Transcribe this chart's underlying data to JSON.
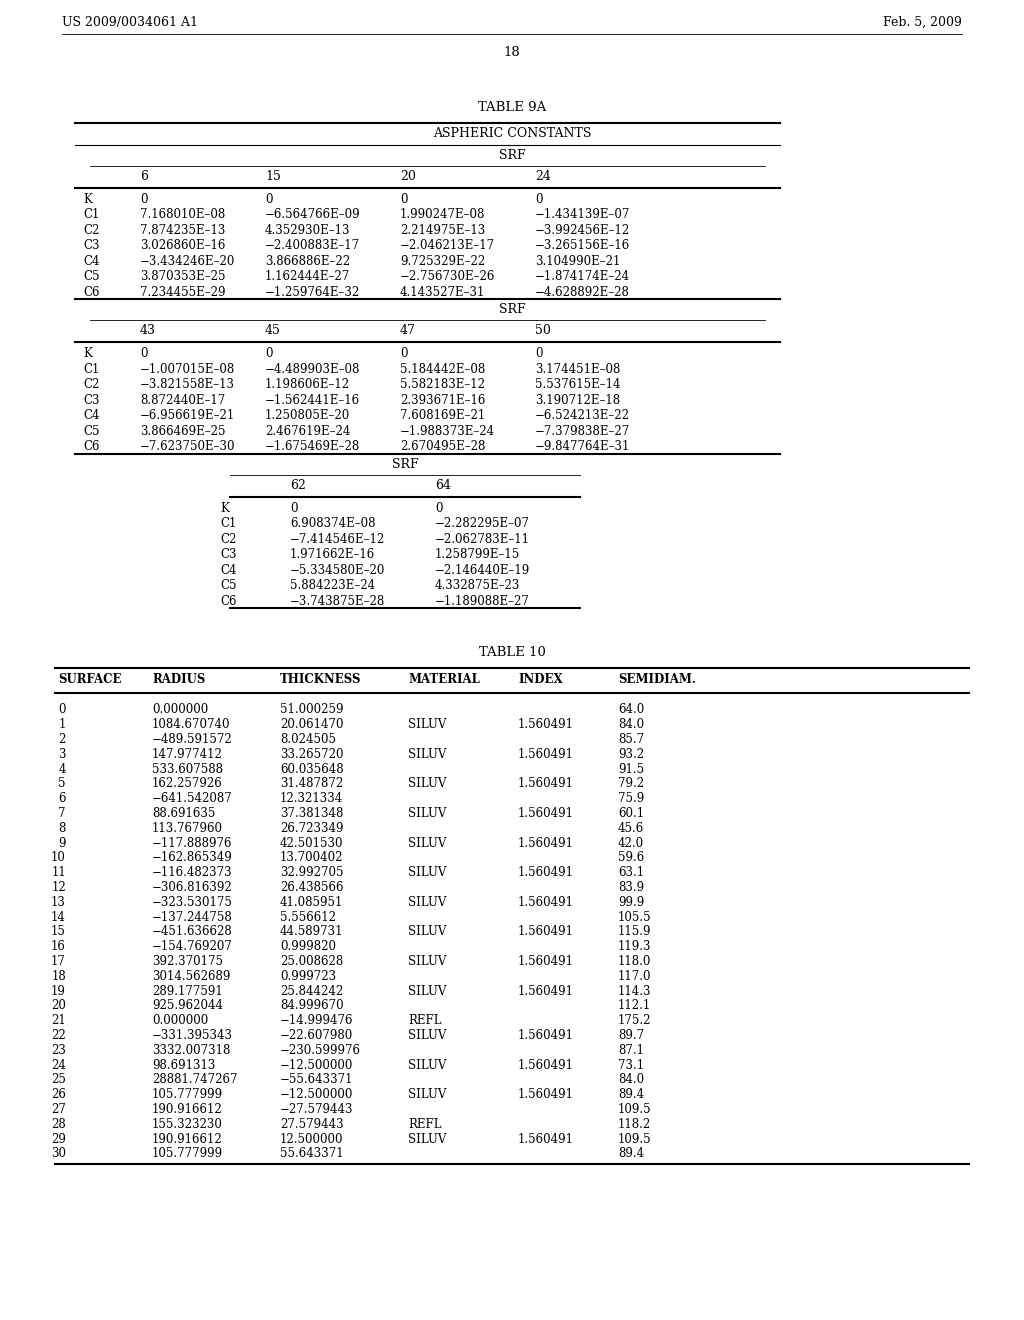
{
  "header_left": "US 2009/0034061 A1",
  "header_right": "Feb. 5, 2009",
  "page_number": "18",
  "table9a_title": "TABLE 9A",
  "table9a_subtitle": "ASPHERIC CONSTANTS",
  "table9a_block1_cols": [
    "6",
    "15",
    "20",
    "24"
  ],
  "table9a_block1_rows": [
    [
      "K",
      "0",
      "0",
      "0",
      "0"
    ],
    [
      "C1",
      "7.168010E–08",
      "−6.564766E–09",
      "1.990247E–08",
      "−1.434139E–07"
    ],
    [
      "C2",
      "7.874235E–13",
      "4.352930E–13",
      "2.214975E–13",
      "−3.992456E–12"
    ],
    [
      "C3",
      "3.026860E–16",
      "−2.400883E–17",
      "−2.046213E–17",
      "−3.265156E–16"
    ],
    [
      "C4",
      "−3.434246E–20",
      "3.866886E–22",
      "9.725329E–22",
      "3.104990E–21"
    ],
    [
      "C5",
      "3.870353E–25",
      "1.162444E–27",
      "−2.756730E–26",
      "−1.874174E–24"
    ],
    [
      "C6",
      "7.234455E–29",
      "−1.259764E–32",
      "4.143527E–31",
      "−4.628892E–28"
    ]
  ],
  "table9a_block2_cols": [
    "43",
    "45",
    "47",
    "50"
  ],
  "table9a_block2_rows": [
    [
      "K",
      "0",
      "0",
      "0",
      "0"
    ],
    [
      "C1",
      "−1.007015E–08",
      "−4.489903E–08",
      "5.184442E–08",
      "3.174451E–08"
    ],
    [
      "C2",
      "−3.821558E–13",
      "1.198606E–12",
      "5.582183E–12",
      "5.537615E–14"
    ],
    [
      "C3",
      "8.872440E–17",
      "−1.562441E–16",
      "2.393671E–16",
      "3.190712E–18"
    ],
    [
      "C4",
      "−6.956619E–21",
      "1.250805E–20",
      "7.608169E–21",
      "−6.524213E–22"
    ],
    [
      "C5",
      "3.866469E–25",
      "2.467619E–24",
      "−1.988373E–24",
      "−7.379838E–27"
    ],
    [
      "C6",
      "−7.623750E–30",
      "−1.675469E–28",
      "2.670495E–28",
      "−9.847764E–31"
    ]
  ],
  "table9a_block3_cols": [
    "62",
    "64"
  ],
  "table9a_block3_rows": [
    [
      "K",
      "0",
      "0"
    ],
    [
      "C1",
      "6.908374E–08",
      "−2.282295E–07"
    ],
    [
      "C2",
      "−7.414546E–12",
      "−2.062783E–11"
    ],
    [
      "C3",
      "1.971662E–16",
      "1.258799E–15"
    ],
    [
      "C4",
      "−5.334580E–20",
      "−2.146440E–19"
    ],
    [
      "C5",
      "5.884223E–24",
      "4.332875E–23"
    ],
    [
      "C6",
      "−3.743875E–28",
      "−1.189088E–27"
    ]
  ],
  "table10_title": "TABLE 10",
  "table10_headers": [
    "SURFACE",
    "RADIUS",
    "THICKNESS",
    "MATERIAL",
    "INDEX",
    "SEMIDIAM."
  ],
  "table10_rows": [
    [
      "0",
      "0.000000",
      "51.000259",
      "",
      "",
      "64.0"
    ],
    [
      "1",
      "1084.670740",
      "20.061470",
      "SILUV",
      "1.560491",
      "84.0"
    ],
    [
      "2",
      "−489.591572",
      "8.024505",
      "",
      "",
      "85.7"
    ],
    [
      "3",
      "147.977412",
      "33.265720",
      "SILUV",
      "1.560491",
      "93.2"
    ],
    [
      "4",
      "533.607588",
      "60.035648",
      "",
      "",
      "91.5"
    ],
    [
      "5",
      "162.257926",
      "31.487872",
      "SILUV",
      "1.560491",
      "79.2"
    ],
    [
      "6",
      "−641.542087",
      "12.321334",
      "",
      "",
      "75.9"
    ],
    [
      "7",
      "88.691635",
      "37.381348",
      "SILUV",
      "1.560491",
      "60.1"
    ],
    [
      "8",
      "113.767960",
      "26.723349",
      "",
      "",
      "45.6"
    ],
    [
      "9",
      "−117.888976",
      "42.501530",
      "SILUV",
      "1.560491",
      "42.0"
    ],
    [
      "10",
      "−162.865349",
      "13.700402",
      "",
      "",
      "59.6"
    ],
    [
      "11",
      "−116.482373",
      "32.992705",
      "SILUV",
      "1.560491",
      "63.1"
    ],
    [
      "12",
      "−306.816392",
      "26.438566",
      "",
      "",
      "83.9"
    ],
    [
      "13",
      "−323.530175",
      "41.085951",
      "SILUV",
      "1.560491",
      "99.9"
    ],
    [
      "14",
      "−137.244758",
      "5.556612",
      "",
      "",
      "105.5"
    ],
    [
      "15",
      "−451.636628",
      "44.589731",
      "SILUV",
      "1.560491",
      "115.9"
    ],
    [
      "16",
      "−154.769207",
      "0.999820",
      "",
      "",
      "119.3"
    ],
    [
      "17",
      "392.370175",
      "25.008628",
      "SILUV",
      "1.560491",
      "118.0"
    ],
    [
      "18",
      "3014.562689",
      "0.999723",
      "",
      "",
      "117.0"
    ],
    [
      "19",
      "289.177591",
      "25.844242",
      "SILUV",
      "1.560491",
      "114.3"
    ],
    [
      "20",
      "925.962044",
      "84.999670",
      "",
      "",
      "112.1"
    ],
    [
      "21",
      "0.000000",
      "−14.999476",
      "REFL",
      "",
      "175.2"
    ],
    [
      "22",
      "−331.395343",
      "−22.607980",
      "SILUV",
      "1.560491",
      "89.7"
    ],
    [
      "23",
      "3332.007318",
      "−230.599976",
      "",
      "",
      "87.1"
    ],
    [
      "24",
      "98.691313",
      "−12.500000",
      "SILUV",
      "1.560491",
      "73.1"
    ],
    [
      "25",
      "28881.747267",
      "−55.643371",
      "",
      "",
      "84.0"
    ],
    [
      "26",
      "105.777999",
      "−12.500000",
      "SILUV",
      "1.560491",
      "89.4"
    ],
    [
      "27",
      "190.916612",
      "−27.579443",
      "",
      "",
      "109.5"
    ],
    [
      "28",
      "155.323230",
      "27.579443",
      "REFL",
      "",
      "118.2"
    ],
    [
      "29",
      "190.916612",
      "12.500000",
      "SILUV",
      "1.560491",
      "109.5"
    ],
    [
      "30",
      "105.777999",
      "55.643371",
      "",
      "",
      "89.4"
    ]
  ]
}
